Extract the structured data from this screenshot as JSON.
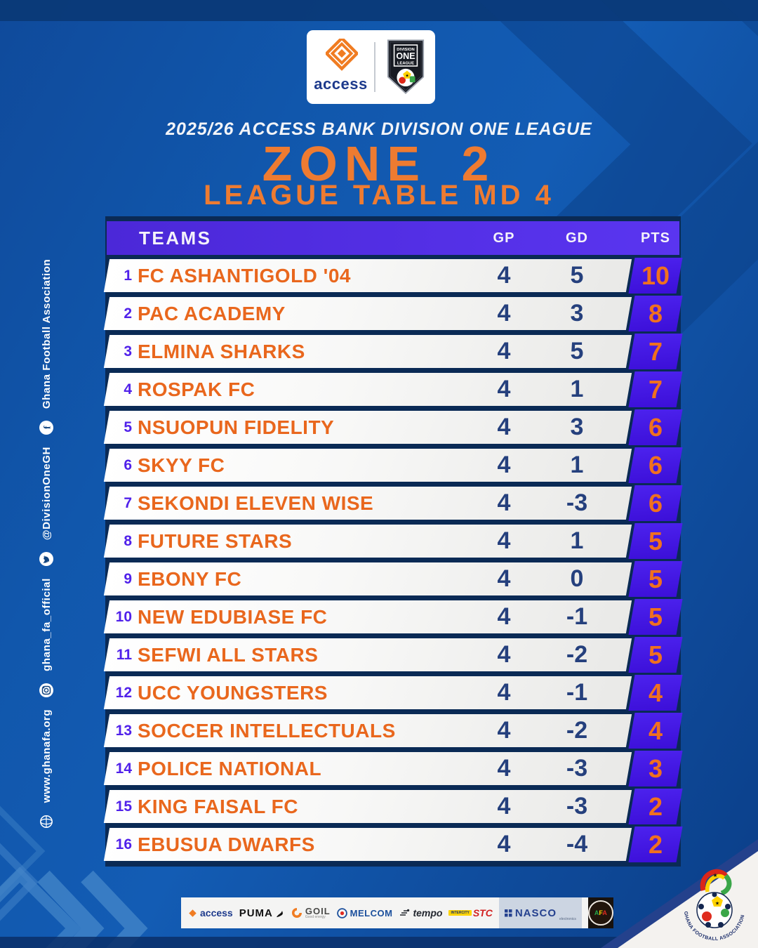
{
  "header": {
    "subtitle": "2025/26 ACCESS BANK DIVISION ONE LEAGUE",
    "zone_title": "ZONE 2",
    "table_title": "LEAGUE TABLE MD 4",
    "access_wordmark": "access",
    "badge_lines": [
      "DIVISION",
      "ONE",
      "LEAGUE"
    ]
  },
  "chart_data": {
    "type": "table",
    "title": "2025/26 Access Bank Division One League — Zone 2 — League Table MD 4",
    "columns": [
      "TEAMS",
      "GP",
      "GD",
      "PTS"
    ],
    "rows": [
      {
        "rank": 1,
        "team": "FC ASHANTIGOLD '04",
        "gp": 4,
        "gd": 5,
        "pts": 10
      },
      {
        "rank": 2,
        "team": "PAC ACADEMY",
        "gp": 4,
        "gd": 3,
        "pts": 8
      },
      {
        "rank": 3,
        "team": "ELMINA SHARKS",
        "gp": 4,
        "gd": 5,
        "pts": 7
      },
      {
        "rank": 4,
        "team": "ROSPAK FC",
        "gp": 4,
        "gd": 1,
        "pts": 7
      },
      {
        "rank": 5,
        "team": "NSUOPUN FIDELITY",
        "gp": 4,
        "gd": 3,
        "pts": 6
      },
      {
        "rank": 6,
        "team": "SKYY FC",
        "gp": 4,
        "gd": 1,
        "pts": 6
      },
      {
        "rank": 7,
        "team": "SEKONDI ELEVEN WISE",
        "gp": 4,
        "gd": -3,
        "pts": 6
      },
      {
        "rank": 8,
        "team": "FUTURE STARS",
        "gp": 4,
        "gd": 1,
        "pts": 5
      },
      {
        "rank": 9,
        "team": "EBONY FC",
        "gp": 4,
        "gd": 0,
        "pts": 5
      },
      {
        "rank": 10,
        "team": "NEW EDUBIASE FC",
        "gp": 4,
        "gd": -1,
        "pts": 5
      },
      {
        "rank": 11,
        "team": "SEFWI ALL STARS",
        "gp": 4,
        "gd": -2,
        "pts": 5
      },
      {
        "rank": 12,
        "team": "UCC YOUNGSTERS",
        "gp": 4,
        "gd": -1,
        "pts": 4
      },
      {
        "rank": 13,
        "team": "SOCCER INTELLECTUALS",
        "gp": 4,
        "gd": -2,
        "pts": 4
      },
      {
        "rank": 14,
        "team": "POLICE NATIONAL",
        "gp": 4,
        "gd": -3,
        "pts": 3
      },
      {
        "rank": 15,
        "team": "KING FAISAL FC",
        "gp": 4,
        "gd": -3,
        "pts": 2
      },
      {
        "rank": 16,
        "team": "EBUSUA DWARFS",
        "gp": 4,
        "gd": -4,
        "pts": 2
      }
    ]
  },
  "social": {
    "items": [
      {
        "icon": "globe-icon",
        "label": "www.ghanafa.org"
      },
      {
        "icon": "instagram-icon",
        "label": "ghana_fa_official"
      },
      {
        "icon": "twitter-icon",
        "label": "@DivisionOneGH"
      },
      {
        "icon": "facebook-icon",
        "label": "Ghana Football Association"
      }
    ]
  },
  "sponsors": {
    "items": [
      {
        "name": "access"
      },
      {
        "name": "PUMA"
      },
      {
        "name": "GOIL",
        "caption": "Good energy"
      },
      {
        "name": "MELCOM"
      },
      {
        "name": "tempo"
      },
      {
        "name": "STC",
        "caption": "INTERCITY"
      },
      {
        "name": "NASCO",
        "caption": "electronics"
      },
      {
        "name": "AFA"
      }
    ]
  },
  "corner": {
    "label": "GHANA FOOTBALL ASSOCIATION"
  },
  "colors": {
    "background_blue": "#1156ab",
    "table_backdrop_navy": "#0a2a55",
    "header_purple": "#5230e8",
    "points_box_purple": "#3f14dd",
    "team_orange": "#e9671d",
    "stat_navy": "#25407d",
    "accent_orange": "#ee7b31"
  }
}
